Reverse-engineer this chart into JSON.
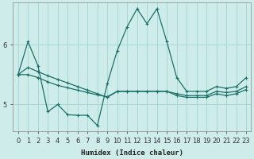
{
  "xlabel": "Humidex (Indice chaleur)",
  "background_color": "#ceecea",
  "grid_color": "#a8d8d4",
  "line_color": "#1a7068",
  "xlim": [
    -0.5,
    23.5
  ],
  "ylim": [
    4.55,
    6.7
  ],
  "yticks": [
    5,
    6
  ],
  "xticks": [
    0,
    1,
    2,
    3,
    4,
    5,
    6,
    7,
    8,
    9,
    10,
    11,
    12,
    13,
    14,
    15,
    16,
    17,
    18,
    19,
    20,
    21,
    22,
    23
  ],
  "series1_y": [
    5.5,
    6.05,
    5.65,
    4.88,
    5.0,
    4.83,
    4.82,
    4.82,
    4.65,
    5.35,
    5.9,
    6.3,
    6.6,
    6.35,
    6.6,
    6.05,
    5.45,
    5.22,
    5.22,
    5.22,
    5.3,
    5.27,
    5.3,
    5.45
  ],
  "series2_y": [
    5.5,
    5.62,
    5.55,
    5.48,
    5.42,
    5.36,
    5.3,
    5.24,
    5.18,
    5.12,
    5.22,
    5.22,
    5.22,
    5.22,
    5.22,
    5.22,
    5.18,
    5.15,
    5.15,
    5.15,
    5.22,
    5.2,
    5.22,
    5.3
  ],
  "series3_y": [
    5.5,
    5.5,
    5.45,
    5.38,
    5.32,
    5.28,
    5.24,
    5.2,
    5.16,
    5.13,
    5.22,
    5.22,
    5.22,
    5.22,
    5.22,
    5.22,
    5.15,
    5.12,
    5.12,
    5.12,
    5.18,
    5.15,
    5.18,
    5.25
  ]
}
